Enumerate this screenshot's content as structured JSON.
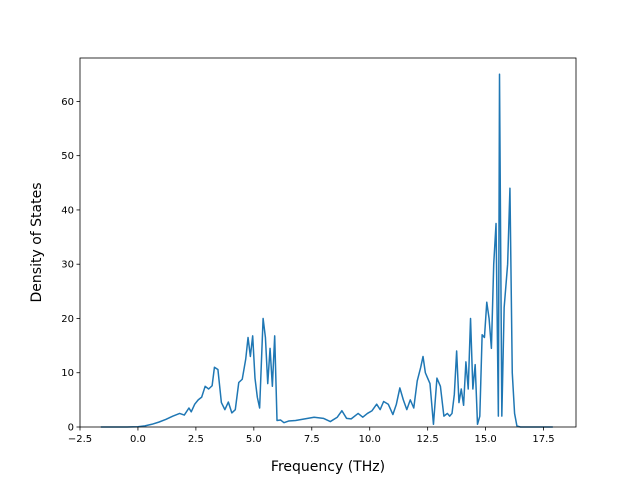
{
  "chart_data": {
    "type": "line",
    "xlabel": "Frequency (THz)",
    "ylabel": "Density of States",
    "xlim": [
      -2.5,
      18.9
    ],
    "ylim": [
      0,
      68
    ],
    "xticks": [
      -2.5,
      0.0,
      2.5,
      5.0,
      7.5,
      10.0,
      12.5,
      15.0,
      17.5
    ],
    "xtick_labels": [
      "−2.5",
      "0.0",
      "2.5",
      "5.0",
      "7.5",
      "10.0",
      "12.5",
      "15.0",
      "17.5"
    ],
    "yticks": [
      0,
      10,
      20,
      30,
      40,
      50,
      60
    ],
    "ytick_labels": [
      "0",
      "10",
      "20",
      "30",
      "40",
      "50",
      "60"
    ],
    "grid": false,
    "line_color": "#1f77b4",
    "series": [
      {
        "x": [
          -1.6,
          -1.0,
          -0.5,
          0.0,
          0.3,
          0.6,
          0.9,
          1.2,
          1.5,
          1.8,
          2.0,
          2.2,
          2.3,
          2.45,
          2.6,
          2.75,
          2.9,
          3.05,
          3.2,
          3.3,
          3.45,
          3.6,
          3.75,
          3.9,
          4.05,
          4.2,
          4.35,
          4.5,
          4.65,
          4.75,
          4.85,
          4.95,
          5.05,
          5.15,
          5.25,
          5.4,
          5.5,
          5.6,
          5.7,
          5.8,
          5.9,
          6.0,
          6.15,
          6.3,
          6.5,
          6.8,
          7.2,
          7.6,
          8.0,
          8.3,
          8.6,
          8.8,
          9.0,
          9.2,
          9.5,
          9.7,
          9.9,
          10.1,
          10.3,
          10.45,
          10.6,
          10.8,
          11.0,
          11.15,
          11.3,
          11.45,
          11.6,
          11.75,
          11.9,
          12.05,
          12.2,
          12.3,
          12.4,
          12.5,
          12.6,
          12.75,
          12.9,
          13.05,
          13.2,
          13.35,
          13.45,
          13.55,
          13.65,
          13.75,
          13.85,
          13.95,
          14.05,
          14.15,
          14.25,
          14.35,
          14.45,
          14.55,
          14.65,
          14.75,
          14.85,
          14.95,
          15.05,
          15.15,
          15.25,
          15.35,
          15.45,
          15.55,
          15.6,
          15.7,
          15.8,
          15.95,
          16.05,
          16.15,
          16.25,
          16.35,
          16.5,
          17.0,
          17.5,
          17.9
        ],
        "y": [
          0,
          0,
          0,
          0.05,
          0.2,
          0.5,
          0.9,
          1.4,
          2.0,
          2.5,
          2.2,
          3.5,
          2.8,
          4.2,
          5.0,
          5.5,
          7.5,
          7.0,
          7.6,
          11.0,
          10.6,
          4.5,
          3.2,
          4.6,
          2.6,
          3.2,
          8.2,
          8.8,
          12.5,
          16.5,
          13.0,
          16.8,
          9.0,
          5.5,
          3.5,
          20.0,
          16.5,
          8.0,
          14.5,
          7.5,
          16.8,
          1.2,
          1.3,
          0.8,
          1.1,
          1.2,
          1.5,
          1.8,
          1.6,
          1.0,
          1.8,
          3.0,
          1.6,
          1.5,
          2.5,
          1.8,
          2.5,
          3.0,
          4.2,
          3.2,
          4.7,
          4.2,
          2.3,
          4.2,
          7.2,
          5.0,
          3.2,
          5.0,
          3.5,
          8.5,
          11.0,
          13.0,
          10.0,
          9.0,
          8.0,
          0.5,
          9.0,
          7.5,
          2.0,
          2.5,
          2.0,
          2.5,
          6.0,
          14.0,
          4.5,
          7.0,
          4.0,
          12.0,
          7.0,
          20.0,
          7.0,
          11.5,
          0.5,
          2.0,
          17.0,
          16.5,
          23.0,
          20.0,
          14.5,
          30.0,
          37.5,
          2.0,
          65.0,
          2.0,
          22.0,
          30.0,
          44.0,
          10.0,
          2.5,
          0.2,
          0,
          0,
          0,
          0
        ]
      }
    ]
  }
}
